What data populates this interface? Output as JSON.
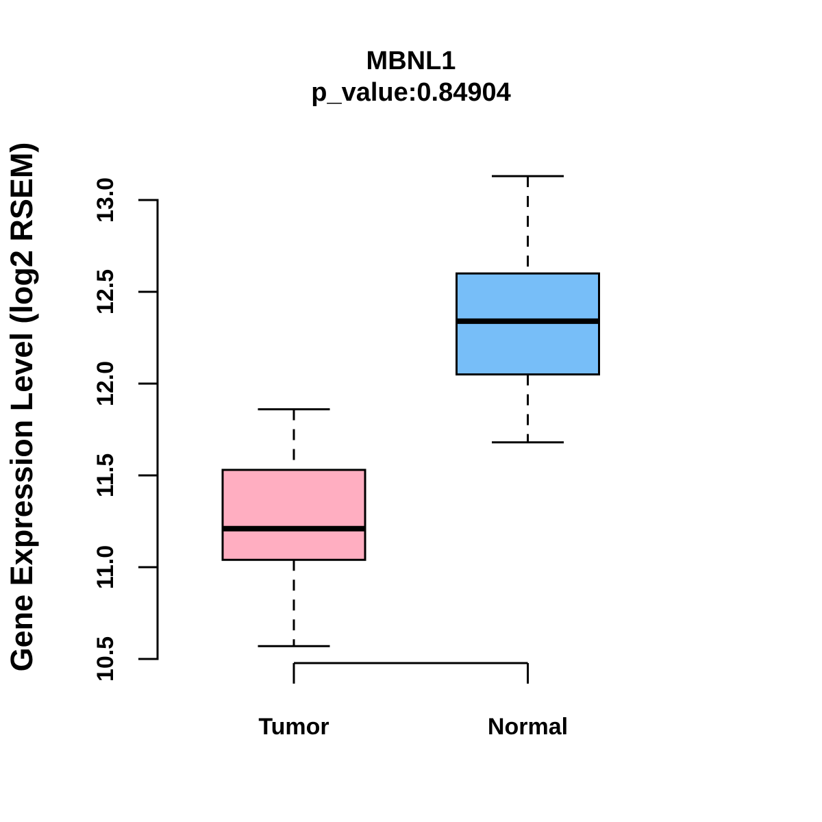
{
  "chart_data": {
    "type": "boxplot",
    "title": "MBNL1",
    "subtitle": "p_value:0.84904",
    "ylabel": "Gene Expression Level (log2 RSEM)",
    "xlabel": "",
    "categories": [
      "Tumor",
      "Normal"
    ],
    "ylim": [
      10.5,
      13.0
    ],
    "y_ticks": [
      13.0,
      12.5,
      12.0,
      11.5,
      11.0,
      10.5
    ],
    "y_tick_labels": [
      "13.0",
      "12.5",
      "12.0",
      "11.5",
      "11.0",
      "10.5"
    ],
    "grid": false,
    "legend": "none",
    "series": [
      {
        "name": "Tumor",
        "box_fill": "#FFAEC1",
        "whisker_low": 10.57,
        "q1": 11.04,
        "median": 11.21,
        "q3": 11.53,
        "whisker_high": 11.86
      },
      {
        "name": "Normal",
        "box_fill": "#77BEF8",
        "whisker_low": 11.68,
        "q1": 12.05,
        "median": 12.34,
        "q3": 12.6,
        "whisker_high": 13.13
      }
    ],
    "colors": {
      "axis": "#000000",
      "box_border": "#000000",
      "median_line": "#000000",
      "text": "#000000",
      "background": "#ffffff"
    }
  }
}
